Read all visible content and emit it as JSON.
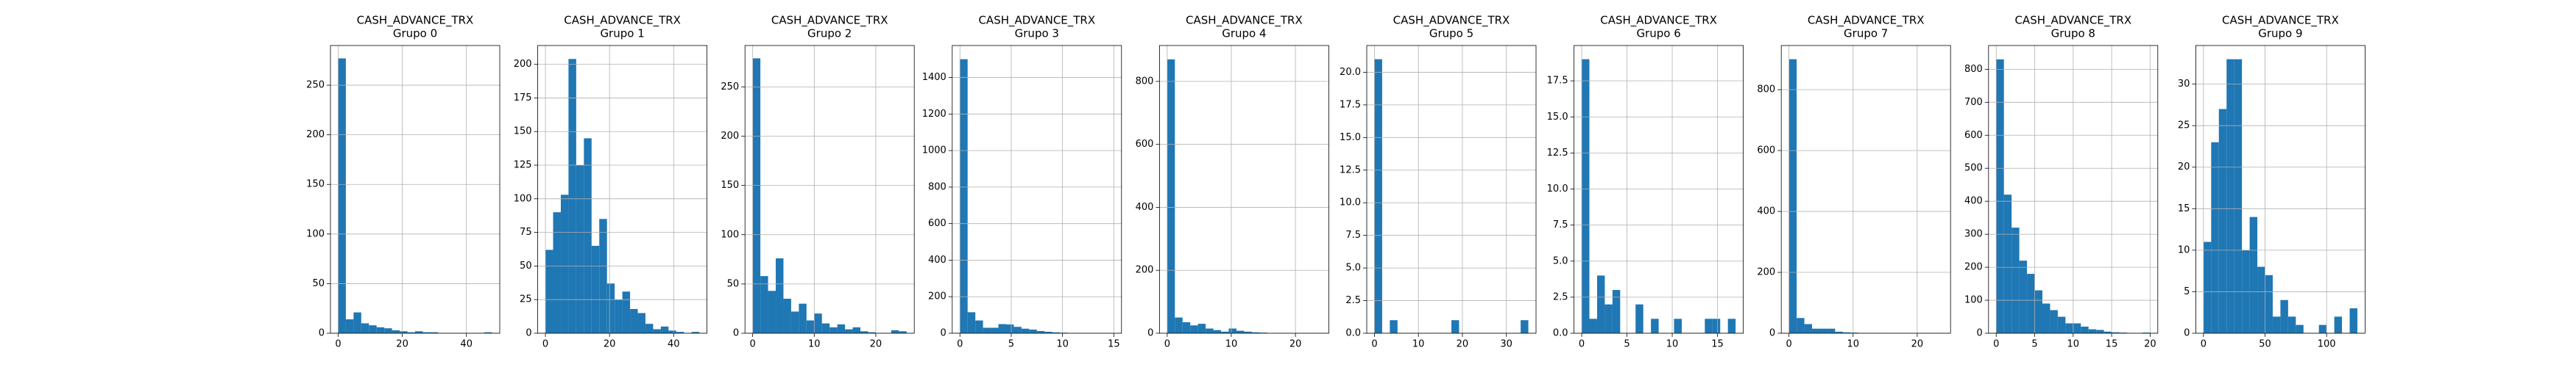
{
  "chart_data": [
    {
      "type": "histogram",
      "title": "CASH_ADVANCE_TRX",
      "subtitle": "Grupo 0",
      "color": "#1f77b4",
      "grid": true,
      "bins": [
        0,
        2.4,
        4.8,
        7.2,
        9.6,
        12,
        14.4,
        16.8,
        19.2,
        21.6,
        24,
        26.4,
        28.8,
        31.2,
        33.6,
        36,
        38.4,
        40.8,
        43.2,
        45.6,
        48
      ],
      "values": [
        277,
        14,
        21,
        10,
        8,
        6,
        5,
        3,
        2,
        1,
        2,
        1,
        1,
        0,
        0,
        0,
        0,
        0,
        0,
        1
      ],
      "xlim": [
        -2.4,
        50.4
      ],
      "xticks": [
        0,
        20,
        40
      ],
      "ylim": [
        0,
        290
      ],
      "yticks": [
        0,
        50,
        100,
        150,
        200,
        250
      ]
    },
    {
      "type": "histogram",
      "title": "CASH_ADVANCE_TRX",
      "subtitle": "Grupo 1",
      "color": "#1f77b4",
      "grid": true,
      "bins": [
        0,
        2.4,
        4.8,
        7.2,
        9.6,
        12,
        14.4,
        16.8,
        19.2,
        21.6,
        24,
        26.4,
        28.8,
        31.2,
        33.6,
        36,
        38.4,
        40.8,
        43.2,
        45.6,
        48
      ],
      "values": [
        62,
        90,
        103,
        204,
        125,
        145,
        65,
        85,
        37,
        25,
        31,
        18,
        15,
        7,
        3,
        5,
        2,
        1,
        0,
        1
      ],
      "xlim": [
        -2.4,
        50.4
      ],
      "xticks": [
        0,
        20,
        40
      ],
      "ylim": [
        0,
        214
      ],
      "yticks": [
        0,
        25,
        50,
        75,
        100,
        125,
        150,
        175,
        200
      ]
    },
    {
      "type": "histogram",
      "title": "CASH_ADVANCE_TRX",
      "subtitle": "Grupo 2",
      "color": "#1f77b4",
      "grid": true,
      "bins": [
        0,
        1.25,
        2.5,
        3.75,
        5,
        6.25,
        7.5,
        8.75,
        10,
        11.25,
        12.5,
        13.75,
        15,
        16.25,
        17.5,
        18.75,
        20,
        21.25,
        22.5,
        23.75,
        25
      ],
      "values": [
        279,
        58,
        43,
        76,
        35,
        22,
        30,
        13,
        20,
        10,
        6,
        9,
        4,
        6,
        2,
        1,
        0,
        0,
        3,
        2
      ],
      "xlim": [
        -1.25,
        26.25
      ],
      "xticks": [
        0,
        10,
        20
      ],
      "ylim": [
        0,
        292
      ],
      "yticks": [
        0,
        50,
        100,
        150,
        200,
        250
      ]
    },
    {
      "type": "histogram",
      "title": "CASH_ADVANCE_TRX",
      "subtitle": "Grupo 3",
      "color": "#1f77b4",
      "grid": true,
      "bins": [
        0,
        0.75,
        1.5,
        2.25,
        3,
        3.75,
        4.5,
        5.25,
        6,
        6.75,
        7.5,
        8.25,
        9,
        9.75,
        10.5,
        11.25,
        12,
        12.75,
        13.5,
        14.25,
        15
      ],
      "values": [
        1500,
        115,
        70,
        30,
        30,
        50,
        48,
        35,
        25,
        20,
        12,
        8,
        5,
        3,
        2,
        0,
        1,
        0,
        0,
        1
      ],
      "xlim": [
        -0.75,
        15.75
      ],
      "xticks": [
        0,
        5,
        10,
        15
      ],
      "ylim": [
        0,
        1575
      ],
      "yticks": [
        0,
        200,
        400,
        600,
        800,
        1000,
        1200,
        1400
      ]
    },
    {
      "type": "histogram",
      "title": "CASH_ADVANCE_TRX",
      "subtitle": "Grupo 4",
      "color": "#1f77b4",
      "grid": true,
      "bins": [
        0,
        1.2,
        2.4,
        3.6,
        4.8,
        6,
        7.2,
        8.4,
        9.6,
        10.8,
        12,
        13.2,
        14.4,
        15.6,
        16.8,
        18,
        19.2,
        20.4,
        21.6,
        22.8,
        24
      ],
      "values": [
        870,
        50,
        35,
        25,
        30,
        15,
        10,
        5,
        15,
        8,
        5,
        3,
        2,
        0,
        1,
        0,
        0,
        0,
        0,
        1
      ],
      "xlim": [
        -1.2,
        25.2
      ],
      "xticks": [
        0,
        10,
        20
      ],
      "ylim": [
        0,
        914
      ],
      "yticks": [
        0,
        200,
        400,
        600,
        800
      ]
    },
    {
      "type": "histogram",
      "title": "CASH_ADVANCE_TRX",
      "subtitle": "Grupo 5",
      "color": "#1f77b4",
      "grid": true,
      "bins": [
        0,
        1.75,
        3.5,
        5.25,
        7,
        8.75,
        10.5,
        12.25,
        14,
        15.75,
        17.5,
        19.25,
        21,
        22.75,
        24.5,
        26.25,
        28,
        29.75,
        31.5,
        33.25,
        35
      ],
      "values": [
        21,
        0,
        1,
        0,
        0,
        0,
        0,
        0,
        0,
        0,
        1,
        0,
        0,
        0,
        0,
        0,
        0,
        0,
        0,
        1
      ],
      "xlim": [
        -1.75,
        36.75
      ],
      "xticks": [
        0,
        10,
        20,
        30
      ],
      "ylim": [
        0,
        22.05
      ],
      "yticks": [
        {
          "value": 0,
          "label": "0.0"
        },
        {
          "value": 2.5,
          "label": "2.5"
        },
        {
          "value": 5,
          "label": "5.0"
        },
        {
          "value": 7.5,
          "label": "7.5"
        },
        {
          "value": 10,
          "label": "10.0"
        },
        {
          "value": 12.5,
          "label": "12.5"
        },
        {
          "value": 15,
          "label": "15.0"
        },
        {
          "value": 17.5,
          "label": "17.5"
        },
        {
          "value": 20,
          "label": "20.0"
        }
      ]
    },
    {
      "type": "histogram",
      "title": "CASH_ADVANCE_TRX",
      "subtitle": "Grupo 6",
      "color": "#1f77b4",
      "grid": true,
      "bins": [
        0,
        0.85,
        1.7,
        2.55,
        3.4,
        4.25,
        5.1,
        5.95,
        6.8,
        7.65,
        8.5,
        9.35,
        10.2,
        11.05,
        11.9,
        12.75,
        13.6,
        14.45,
        15.3,
        16.15,
        17
      ],
      "values": [
        19,
        1,
        4,
        2,
        3,
        0,
        0,
        2,
        0,
        1,
        0,
        0,
        1,
        0,
        0,
        0,
        1,
        1,
        0,
        1
      ],
      "xlim": [
        -0.85,
        17.85
      ],
      "xticks": [
        0,
        5,
        10,
        15
      ],
      "ylim": [
        0,
        19.95
      ],
      "yticks": [
        {
          "value": 0,
          "label": "0.0"
        },
        {
          "value": 2.5,
          "label": "2.5"
        },
        {
          "value": 5,
          "label": "5.0"
        },
        {
          "value": 7.5,
          "label": "7.5"
        },
        {
          "value": 10,
          "label": "10.0"
        },
        {
          "value": 12.5,
          "label": "12.5"
        },
        {
          "value": 15,
          "label": "15.0"
        },
        {
          "value": 17.5,
          "label": "17.5"
        }
      ]
    },
    {
      "type": "histogram",
      "title": "CASH_ADVANCE_TRX",
      "subtitle": "Grupo 7",
      "color": "#1f77b4",
      "grid": true,
      "bins": [
        0,
        1.2,
        2.4,
        3.6,
        4.8,
        6,
        7.2,
        8.4,
        9.6,
        10.8,
        12,
        13.2,
        14.4,
        15.6,
        16.8,
        18,
        19.2,
        20.4,
        21.6,
        22.8,
        24
      ],
      "values": [
        900,
        50,
        30,
        15,
        15,
        15,
        5,
        3,
        2,
        1,
        0,
        1,
        0,
        0,
        0,
        0,
        0,
        0,
        0,
        1
      ],
      "xlim": [
        -1.2,
        25.2
      ],
      "xticks": [
        0,
        10,
        20
      ],
      "ylim": [
        0,
        945
      ],
      "yticks": [
        0,
        200,
        400,
        600,
        800
      ]
    },
    {
      "type": "histogram",
      "title": "CASH_ADVANCE_TRX",
      "subtitle": "Grupo 8",
      "color": "#1f77b4",
      "grid": true,
      "bins": [
        0,
        1,
        2,
        3,
        4,
        5,
        6,
        7,
        8,
        9,
        10,
        11,
        12,
        13,
        14,
        15,
        16,
        17,
        18,
        19,
        20
      ],
      "values": [
        830,
        420,
        320,
        220,
        180,
        130,
        90,
        70,
        50,
        30,
        30,
        20,
        12,
        10,
        5,
        3,
        2,
        1,
        1,
        2
      ],
      "xlim": [
        -1,
        21
      ],
      "xticks": [
        0,
        5,
        10,
        15,
        20
      ],
      "ylim": [
        0,
        872
      ],
      "yticks": [
        0,
        100,
        200,
        300,
        400,
        500,
        600,
        700,
        800
      ]
    },
    {
      "type": "histogram",
      "title": "CASH_ADVANCE_TRX",
      "subtitle": "Grupo 9",
      "color": "#1f77b4",
      "grid": true,
      "bins": [
        0,
        6.25,
        12.5,
        18.75,
        25,
        31.25,
        37.5,
        43.75,
        50,
        56.25,
        62.5,
        68.75,
        75,
        81.25,
        87.5,
        93.75,
        100,
        106.25,
        112.5,
        118.75,
        125
      ],
      "values": [
        11,
        23,
        27,
        33,
        33,
        10,
        14,
        8,
        7,
        2,
        4,
        2,
        1,
        0,
        0,
        1,
        0,
        2,
        0,
        3
      ],
      "xlim": [
        -6.25,
        131.25
      ],
      "xticks": [
        0,
        50,
        100
      ],
      "ylim": [
        0,
        34.65
      ],
      "yticks": [
        0,
        5,
        10,
        15,
        20,
        25,
        30
      ]
    }
  ]
}
